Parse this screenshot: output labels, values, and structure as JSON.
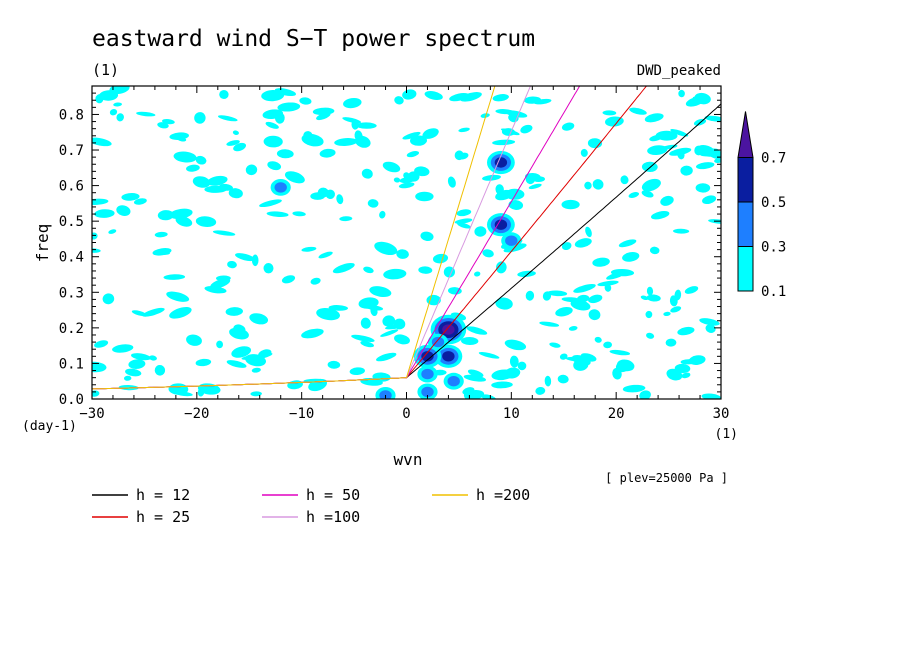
{
  "chart_data": {
    "type": "contour",
    "title": "eastward wind S−T power spectrum",
    "title_unit": "(1)",
    "source_label": "DWD_peaked",
    "xlabel": "wvn",
    "ylabel": "freq",
    "x_unit": "(1)",
    "y_unit": "(day-1)",
    "xlim": [
      -30,
      30
    ],
    "ylim": [
      0,
      0.88
    ],
    "x_ticks": [
      "−30",
      "−20",
      "−10",
      "0",
      "10",
      "20",
      "30"
    ],
    "x_tick_values": [
      -30,
      -20,
      -10,
      0,
      10,
      20,
      30
    ],
    "y_ticks": [
      "0.0",
      "0.1",
      "0.2",
      "0.3",
      "0.4",
      "0.5",
      "0.6",
      "0.7",
      "0.8"
    ],
    "y_tick_values": [
      0,
      0.1,
      0.2,
      0.3,
      0.4,
      0.5,
      0.6,
      0.7,
      0.8
    ],
    "level_note": "[ plev=25000 Pa ]",
    "colorbar": {
      "levels": [
        "0.1",
        "0.3",
        "0.5",
        "0.7"
      ],
      "level_values": [
        0.1,
        0.3,
        0.5,
        0.7
      ],
      "colors": [
        "#00ffff",
        "#1e7fff",
        "#0a1ea0",
        "#4b14a0"
      ]
    },
    "series": [
      {
        "name": "h = 12",
        "h": 12,
        "color": "#000000"
      },
      {
        "name": "h = 25",
        "h": 25,
        "color": "#e00000"
      },
      {
        "name": "h = 50",
        "h": 50,
        "color": "#e000c0"
      },
      {
        "name": "h =100",
        "h": 100,
        "color": "#d89ae0"
      },
      {
        "name": "h =200",
        "h": 200,
        "color": "#f0c000"
      }
    ],
    "peaks": [
      {
        "x": 4,
        "y": 0.195,
        "level": 0.7
      },
      {
        "x": 4,
        "y": 0.12,
        "level": 0.5
      },
      {
        "x": 2,
        "y": 0.12,
        "level": 0.5
      },
      {
        "x": 3,
        "y": 0.16,
        "level": 0.3
      },
      {
        "x": 9,
        "y": 0.49,
        "level": 0.5
      },
      {
        "x": 9,
        "y": 0.665,
        "level": 0.5
      },
      {
        "x": -12,
        "y": 0.595,
        "level": 0.3
      },
      {
        "x": 4.5,
        "y": 0.05,
        "level": 0.3
      },
      {
        "x": 2,
        "y": 0.07,
        "level": 0.3
      },
      {
        "x": -2,
        "y": 0.01,
        "level": 0.3
      },
      {
        "x": 10,
        "y": 0.445,
        "level": 0.3
      },
      {
        "x": 2,
        "y": 0.02,
        "level": 0.3
      }
    ]
  }
}
